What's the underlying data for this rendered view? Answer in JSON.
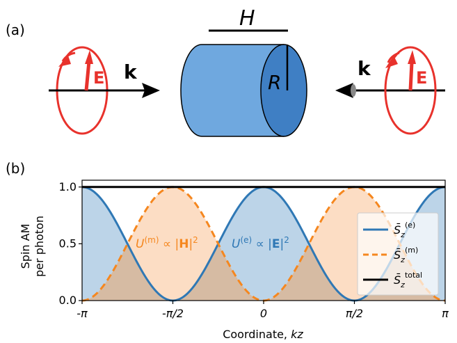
{
  "panel_a": {
    "label": "(a)",
    "cylinder_height_label": "H",
    "cylinder_radius_label": "R",
    "left_field_label": "E",
    "left_wavevector_label": "k",
    "right_field_label": "E",
    "right_wavevector_label": "k",
    "colors": {
      "field_red": "#e8322c",
      "cylinder_light": "#6fa8df",
      "cylinder_dark": "#3f7fc4"
    }
  },
  "panel_b": {
    "label": "(b)",
    "annotations": {
      "magnetic_energy": "U(m) ∝ |H|²",
      "electric_energy": "U(e) ∝ |E|²"
    }
  },
  "chart_data": {
    "type": "line",
    "xlabel": "Coordinate, kz",
    "ylabel": "Spin AM per photon",
    "xlim": [
      -3.14159,
      3.14159
    ],
    "ylim": [
      0,
      1.06
    ],
    "xticks": [
      "-π",
      "-π/2",
      "0",
      "π/2",
      "π"
    ],
    "yticks": [
      "0.0",
      "0.5",
      "1.0"
    ],
    "grid": false,
    "legend_position": "right",
    "legend": [
      "S̄z(e)",
      "S̄z(m)",
      "S̄z total"
    ],
    "series": [
      {
        "name": "S̄z(e)",
        "formula": "cos²(kz)",
        "x": [
          -3.1416,
          -2.3562,
          -1.5708,
          -0.7854,
          0,
          0.7854,
          1.5708,
          2.3562,
          3.1416
        ],
        "values": [
          1.0,
          0.5,
          0.0,
          0.5,
          1.0,
          0.5,
          0.0,
          0.5,
          1.0
        ],
        "color": "#2f78b5",
        "style": "solid",
        "fill": "#bcd4e8"
      },
      {
        "name": "S̄z(m)",
        "formula": "sin²(kz)",
        "x": [
          -3.1416,
          -2.3562,
          -1.5708,
          -0.7854,
          0,
          0.7854,
          1.5708,
          2.3562,
          3.1416
        ],
        "values": [
          0.0,
          0.5,
          1.0,
          0.5,
          0.0,
          0.5,
          1.0,
          0.5,
          0.0
        ],
        "color": "#f5871f",
        "style": "dashed",
        "fill": "#fbd2b0"
      },
      {
        "name": "S̄z total",
        "x": [
          -3.1416,
          3.1416
        ],
        "values": [
          1.0,
          1.0
        ],
        "color": "#000000",
        "style": "solid"
      }
    ],
    "overlap_fill": "#d6bba3"
  }
}
